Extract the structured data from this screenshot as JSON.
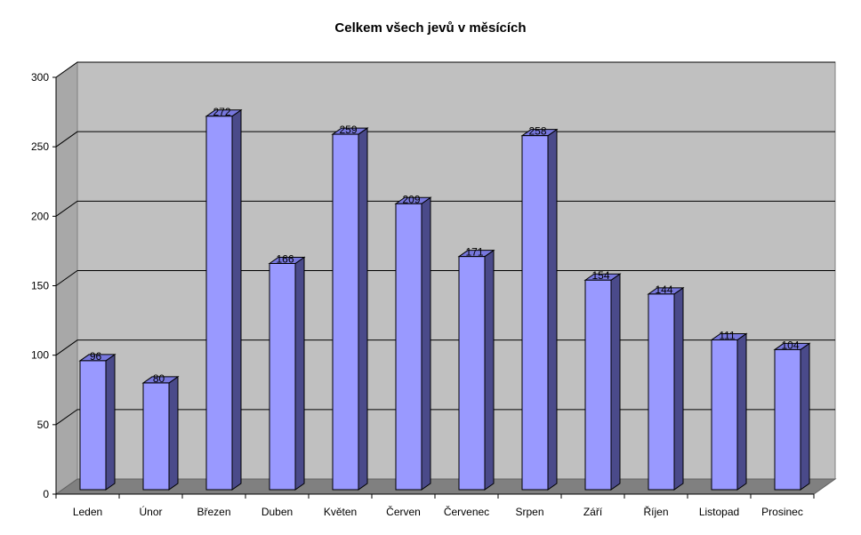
{
  "chart_data": {
    "type": "bar",
    "title": "Celkem všech jevů v měsících",
    "xlabel": "",
    "ylabel": "",
    "categories": [
      "Leden",
      "Únor",
      "Březen",
      "Duben",
      "Květen",
      "Červen",
      "Červenec",
      "Srpen",
      "Září",
      "Říjen",
      "Listopad",
      "Prosinec"
    ],
    "series": [
      {
        "values": [
          96,
          80,
          272,
          166,
          259,
          209,
          171,
          258,
          154,
          144,
          111,
          104
        ]
      }
    ],
    "ylim": [
      0,
      300
    ],
    "yticks": [
      0,
      50,
      100,
      150,
      200,
      250,
      300
    ],
    "grid": true,
    "legend": "none",
    "style": "3d-column",
    "colors": {
      "bar_front": "#9999ff",
      "bar_top": "#7777dd",
      "bar_side": "#4a4a8a",
      "wall": "#c0c0c0",
      "floor": "#808080",
      "gridline": "#000000"
    }
  }
}
